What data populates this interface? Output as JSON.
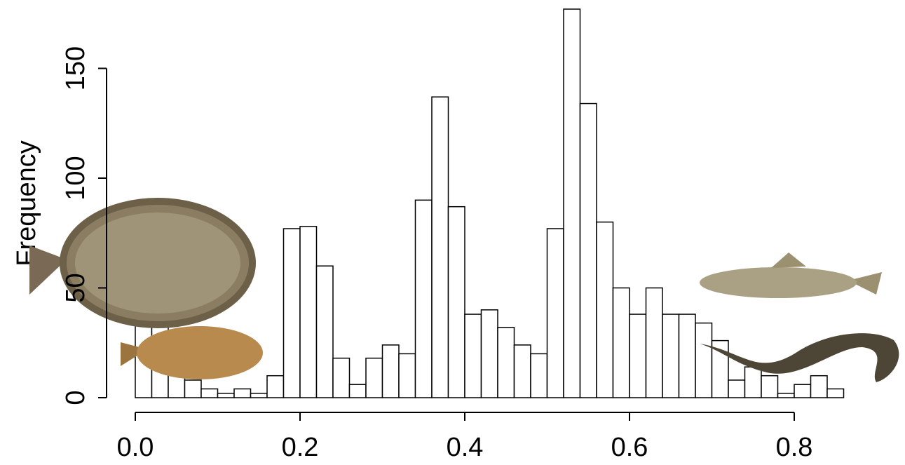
{
  "chart_data": {
    "type": "histogram",
    "y_label": "Frequency",
    "bins": [
      0,
      0.02,
      0.04,
      0.06,
      0.08,
      0.1,
      0.12,
      0.14,
      0.16,
      0.18,
      0.2,
      0.22,
      0.24,
      0.26,
      0.28,
      0.3,
      0.32,
      0.34,
      0.36,
      0.38,
      0.4,
      0.42,
      0.44,
      0.46,
      0.48,
      0.5,
      0.52,
      0.54,
      0.56,
      0.58,
      0.6,
      0.62,
      0.64,
      0.66,
      0.68,
      0.7,
      0.72,
      0.74,
      0.76,
      0.78,
      0.8,
      0.82,
      0.84,
      0.86
    ],
    "counts": [
      37,
      34,
      20,
      8,
      4,
      2,
      4,
      2,
      10,
      77,
      78,
      60,
      18,
      6,
      18,
      24,
      20,
      90,
      137,
      87,
      38,
      40,
      32,
      24,
      20,
      77,
      177,
      134,
      80,
      50,
      38,
      50,
      38,
      38,
      34,
      26,
      8,
      14,
      10,
      2,
      6,
      10,
      4
    ],
    "xlim": [
      0,
      0.86
    ],
    "ylim": [
      0,
      177
    ],
    "xticks": [
      {
        "value": 0,
        "label": "0.0"
      },
      0.2,
      0.4,
      0.6,
      0.8
    ],
    "yticks": [
      0,
      50,
      100,
      150
    ]
  }
}
